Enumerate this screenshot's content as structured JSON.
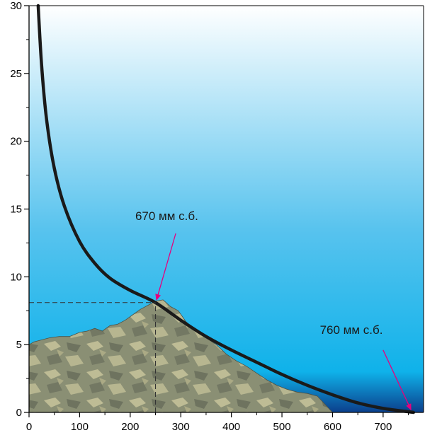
{
  "chart_data": {
    "type": "line",
    "title": "",
    "xlabel": "",
    "ylabel": "",
    "xlim": [
      0,
      780
    ],
    "ylim": [
      0,
      30
    ],
    "x_ticks": [
      0,
      100,
      200,
      300,
      400,
      500,
      600,
      700
    ],
    "y_ticks": [
      0,
      5,
      10,
      15,
      20,
      25,
      30
    ],
    "x_tick_labels": [
      "0",
      "100",
      "200",
      "300",
      "400",
      "500",
      "600",
      "700"
    ],
    "y_tick_labels": [
      "0",
      "5",
      "10",
      "15",
      "20",
      "25",
      "30"
    ],
    "x_minor_step": 50,
    "y_minor_step": 2.5,
    "grid": false,
    "series": [
      {
        "values_x": [
          18,
          25,
          35,
          50,
          70,
          100,
          130,
          160,
          200,
          250,
          300,
          350,
          400,
          450,
          500,
          550,
          600,
          650,
          700,
          760
        ],
        "values_y": [
          30,
          25.5,
          21.5,
          18,
          15.2,
          12.6,
          11.0,
          9.9,
          9.0,
          8.1,
          6.8,
          5.6,
          4.6,
          3.7,
          2.8,
          2.0,
          1.3,
          0.7,
          0.3,
          0
        ]
      }
    ],
    "mountain_profile": {
      "x": [
        0,
        10,
        20,
        40,
        60,
        80,
        100,
        115,
        130,
        145,
        160,
        175,
        190,
        205,
        220,
        235,
        250,
        265,
        280,
        295,
        310,
        330,
        350,
        370,
        390,
        410,
        430,
        450,
        470,
        490,
        510,
        530,
        550,
        570,
        585,
        595,
        600
      ],
      "y": [
        5.0,
        5.2,
        5.3,
        5.5,
        5.6,
        5.6,
        5.9,
        6.0,
        6.2,
        6.0,
        6.4,
        6.5,
        6.8,
        7.2,
        7.6,
        7.9,
        8.2,
        8.3,
        7.8,
        7.5,
        6.7,
        6.0,
        5.5,
        5.0,
        4.3,
        3.8,
        3.4,
        2.9,
        2.4,
        2.0,
        1.7,
        1.5,
        1.4,
        1.2,
        0.6,
        0.2,
        0
      ]
    },
    "reference_lines": [
      {
        "style": "dashed",
        "from": [
          0,
          8.1
        ],
        "to": [
          250,
          8.1
        ]
      },
      {
        "style": "dashed",
        "from": [
          250,
          0
        ],
        "to": [
          250,
          8.1
        ]
      }
    ],
    "annotations": [
      {
        "text": "670 мм с.б.",
        "text_at": [
          210,
          14.2
        ],
        "arrow_from": [
          290,
          13.2
        ],
        "arrow_to": [
          252,
          8.3
        ]
      },
      {
        "text": "760 мм с.б.",
        "text_at": [
          575,
          5.8
        ],
        "arrow_from": [
          700,
          4.6
        ],
        "arrow_to": [
          755,
          0.2
        ]
      }
    ],
    "colors": {
      "sky_top": "#ffffff",
      "sky_mid": "#58c3ee",
      "sky_low": "#0fb2ea",
      "sky_bottom": "#0b3f8c",
      "mountain_fill": "#8a8f74",
      "mountain_light": "#cfcba0",
      "mountain_dark": "#5c6152",
      "curve": "#1a1a1a",
      "arrow": "#e6007e",
      "dash": "#333333"
    }
  }
}
